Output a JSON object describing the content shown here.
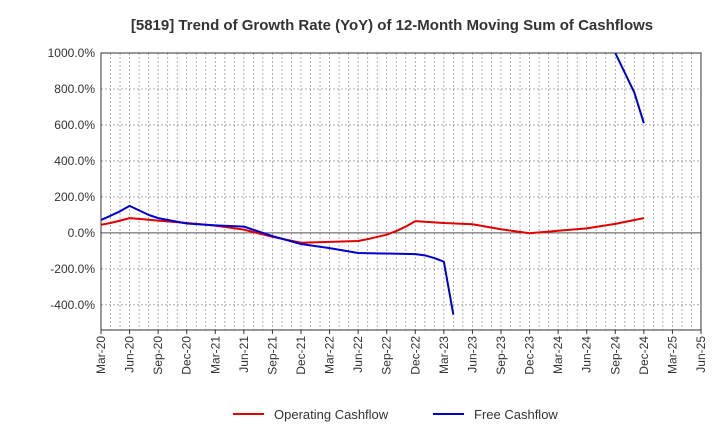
{
  "chart_data": {
    "type": "line",
    "title": "[5819]  Trend of Growth Rate (YoY) of 12-Month Moving Sum of Cashflows",
    "xlabel": "",
    "ylabel": "",
    "x_tick_labels": [
      "Mar-20",
      "Jun-20",
      "Sep-20",
      "Dec-20",
      "Mar-21",
      "Jun-21",
      "Sep-21",
      "Dec-21",
      "Mar-22",
      "Jun-22",
      "Sep-22",
      "Dec-22",
      "Mar-23",
      "Jun-23",
      "Sep-23",
      "Dec-23",
      "Mar-24",
      "Jun-24",
      "Sep-24",
      "Dec-24",
      "Mar-25",
      "Jun-25"
    ],
    "y_tick_labels": [
      "1000.0%",
      "800.0%",
      "600.0%",
      "400.0%",
      "200.0%",
      "0.0%",
      "-200.0%",
      "-400.0%"
    ],
    "ylim": [
      -540,
      1000
    ],
    "y_ticks": [
      1000,
      800,
      600,
      400,
      200,
      0,
      -200,
      -400
    ],
    "grid": true,
    "legend_position": "bottom-center",
    "series": [
      {
        "name": "Operating Cashflow",
        "color": "#e00000",
        "points": [
          [
            "Mar-20",
            45
          ],
          [
            "Apr-20",
            55
          ],
          [
            "May-20",
            68
          ],
          [
            "Jun-20",
            82
          ],
          [
            "Jul-20",
            78
          ],
          [
            "Sep-20",
            68
          ],
          [
            "Dec-20",
            55
          ],
          [
            "Mar-21",
            40
          ],
          [
            "Jun-21",
            18
          ],
          [
            "Sep-21",
            -22
          ],
          [
            "Dec-21",
            -55
          ],
          [
            "Mar-22",
            -50
          ],
          [
            "Jun-22",
            -45
          ],
          [
            "Jul-22",
            -35
          ],
          [
            "Sep-22",
            -10
          ],
          [
            "Oct-22",
            10
          ],
          [
            "Nov-22",
            35
          ],
          [
            "Dec-22",
            65
          ],
          [
            "Mar-23",
            55
          ],
          [
            "Jun-23",
            48
          ],
          [
            "Sep-23",
            20
          ],
          [
            "Dec-23",
            -2
          ],
          [
            "Mar-24",
            12
          ],
          [
            "Jun-24",
            25
          ],
          [
            "Sep-24",
            50
          ],
          [
            "Dec-24",
            82
          ]
        ]
      },
      {
        "name": "Free Cashflow",
        "color": "#0000cc",
        "points": [
          [
            "Mar-20",
            72
          ],
          [
            "Apr-20",
            95
          ],
          [
            "May-20",
            120
          ],
          [
            "Jun-20",
            150
          ],
          [
            "Jul-20",
            125
          ],
          [
            "Aug-20",
            100
          ],
          [
            "Sep-20",
            82
          ],
          [
            "Dec-20",
            52
          ],
          [
            "Mar-21",
            42
          ],
          [
            "Jun-21",
            35
          ],
          [
            "Sep-21",
            -18
          ],
          [
            "Dec-21",
            -62
          ],
          [
            "Mar-22",
            -85
          ],
          [
            "Jun-22",
            -112
          ],
          [
            "Sep-22",
            -115
          ],
          [
            "Dec-22",
            -118
          ],
          [
            "Jan-23",
            -125
          ],
          [
            "Feb-23",
            -140
          ],
          [
            "Mar-23",
            -160
          ],
          [
            "Apr-23",
            -455
          ]
        ]
      },
      {
        "name": "Free Cashflow",
        "color": "#0000cc",
        "points": [
          [
            "Sep-24",
            1000
          ],
          [
            "Nov-24",
            780
          ],
          [
            "Dec-24",
            610
          ]
        ]
      }
    ]
  },
  "legend": [
    {
      "label": "Operating Cashflow",
      "color": "#e00000"
    },
    {
      "label": "Free Cashflow",
      "color": "#0000cc"
    }
  ]
}
